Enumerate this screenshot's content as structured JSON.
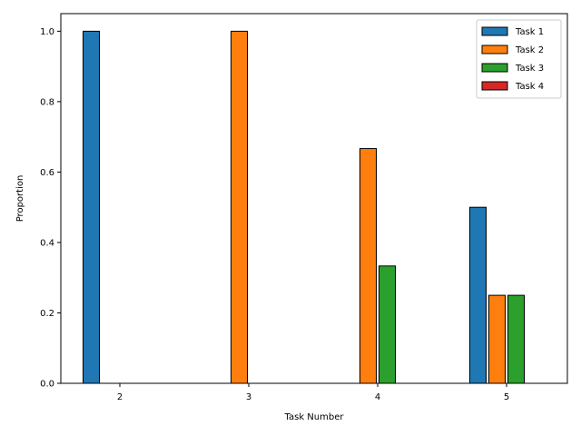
{
  "chart_data": {
    "type": "bar",
    "title": "",
    "xlabel": "Task Number",
    "ylabel": "Proportion",
    "categories": [
      "2",
      "3",
      "4",
      "5"
    ],
    "series": [
      {
        "name": "Task 1",
        "color": "#1f77b4",
        "values": [
          1.0,
          0.0,
          0.0,
          0.5
        ]
      },
      {
        "name": "Task 2",
        "color": "#ff7f0e",
        "values": [
          0.0,
          1.0,
          0.6667,
          0.25
        ]
      },
      {
        "name": "Task 3",
        "color": "#2ca02c",
        "values": [
          0.0,
          0.0,
          0.3333,
          0.25
        ]
      },
      {
        "name": "Task 4",
        "color": "#d62728",
        "values": [
          0.0,
          0.0,
          0.0,
          0.0
        ]
      }
    ],
    "ylim": [
      0,
      1.05
    ],
    "yticks": [
      "0.0",
      "0.2",
      "0.4",
      "0.6",
      "0.8",
      "1.0"
    ],
    "grid": false,
    "legend_position": "top-right",
    "bar_edge_color": "#000000"
  }
}
